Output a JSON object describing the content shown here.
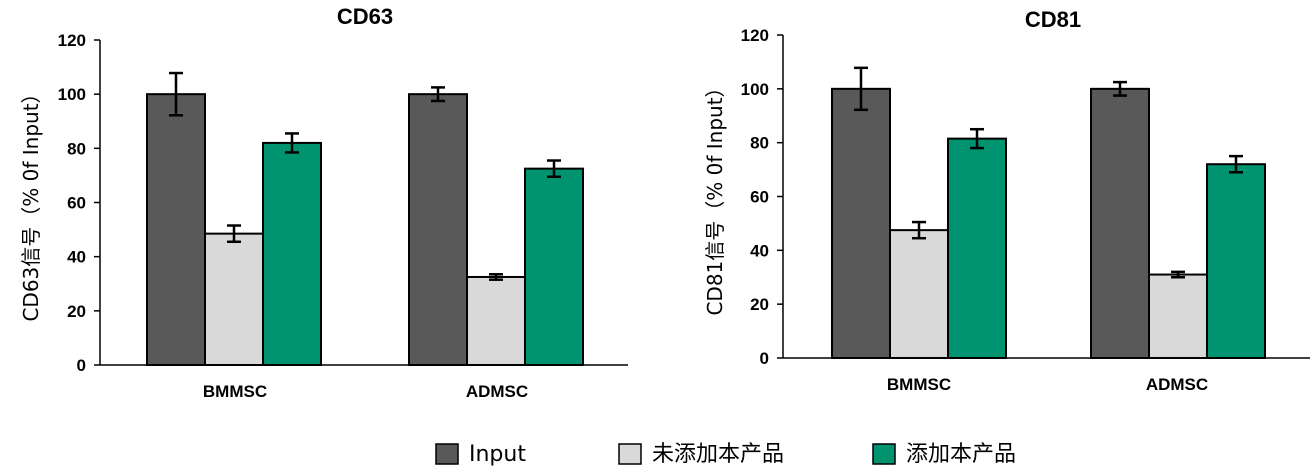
{
  "chart_data": [
    {
      "type": "bar",
      "title": "CD63",
      "ylabel": "CD63信号（% 0f Input）",
      "categories": [
        "BMMSC",
        "ADMSC"
      ],
      "ylim": [
        0,
        120
      ],
      "yticks": [
        0,
        20,
        40,
        60,
        80,
        100,
        120
      ],
      "series": [
        {
          "name": "Input",
          "values": [
            100,
            100
          ],
          "errors": [
            7.8,
            2.5
          ],
          "color": "#595959"
        },
        {
          "name": "未添加本产品",
          "values": [
            48.5,
            32.5
          ],
          "errors": [
            3.0,
            1.0
          ],
          "color": "#d9d9d9"
        },
        {
          "name": "添加本产品",
          "values": [
            82,
            72.5
          ],
          "errors": [
            3.5,
            3.0
          ],
          "color": "#009370"
        }
      ]
    },
    {
      "type": "bar",
      "title": "CD81",
      "ylabel": "CD81信号（% 0f Input）",
      "categories": [
        "BMMSC",
        "ADMSC"
      ],
      "ylim": [
        0,
        120
      ],
      "yticks": [
        0,
        20,
        40,
        60,
        80,
        100,
        120
      ],
      "series": [
        {
          "name": "Input",
          "values": [
            100,
            100
          ],
          "errors": [
            7.8,
            2.5
          ],
          "color": "#595959"
        },
        {
          "name": "未添加本产品",
          "values": [
            47.5,
            31
          ],
          "errors": [
            3.0,
            1.0
          ],
          "color": "#d9d9d9"
        },
        {
          "name": "添加本产品",
          "values": [
            81.5,
            72
          ],
          "errors": [
            3.5,
            3.0
          ],
          "color": "#009370"
        }
      ]
    }
  ],
  "legend": [
    {
      "label": "Input",
      "color": "#595959"
    },
    {
      "label": "未添加本产品",
      "color": "#d9d9d9"
    },
    {
      "label": "添加本产品",
      "color": "#009370"
    }
  ]
}
